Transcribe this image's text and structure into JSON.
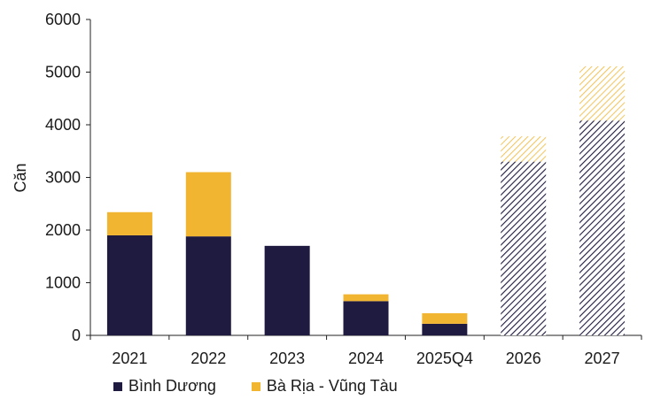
{
  "chart_data": {
    "type": "bar",
    "stacked": true,
    "categories": [
      "2021",
      "2022",
      "2023",
      "2024",
      "2025Q4",
      "2026",
      "2027"
    ],
    "series": [
      {
        "name": "Bình Dương",
        "values": [
          1900,
          1880,
          1700,
          650,
          220,
          3300,
          4080
        ],
        "color": "#1f1a3f"
      },
      {
        "name": "Bà Rịa - Vũng Tàu",
        "values": [
          440,
          1220,
          0,
          130,
          200,
          480,
          1030
        ],
        "color": "#f2b531"
      }
    ],
    "forecast_categories": [
      "2026",
      "2027"
    ],
    "ylabel": "Căn",
    "ylim": [
      0,
      6000
    ],
    "yticks": [
      0,
      1000,
      2000,
      3000,
      4000,
      5000,
      6000
    ],
    "legend": "bottom-left",
    "grid": false
  }
}
